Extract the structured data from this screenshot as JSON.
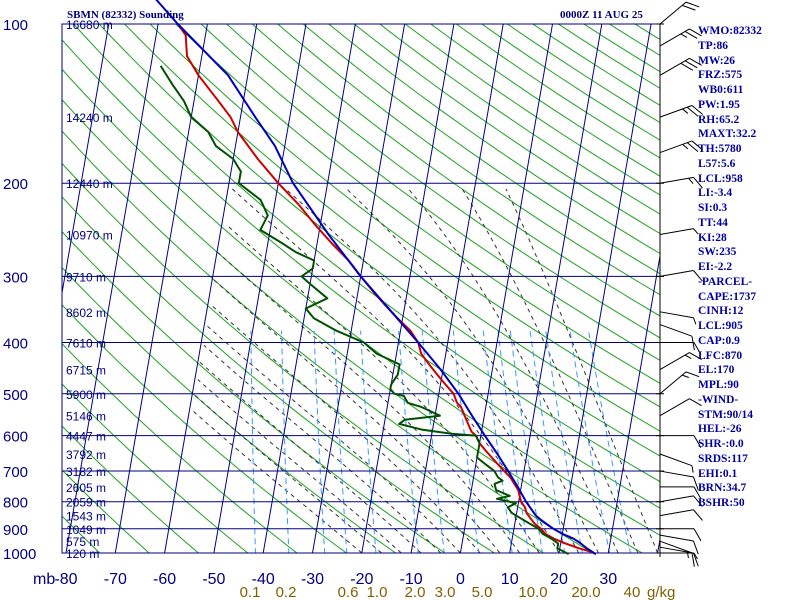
{
  "header": {
    "station": "SBMN (82332) Sounding",
    "time": "0000Z 11 AUG 25"
  },
  "stats": [
    "WMO:82332",
    "TP:86",
    "MW:26",
    "FRZ:575",
    "WB0:611",
    "PW:1.95",
    "RH:65.2",
    "MAXT:32.2",
    "TH:5780",
    "L57:5.6",
    "LCL:958",
    "LI:-3.4",
    "SI:0.3",
    "TT:44",
    "KI:28",
    "SW:235",
    "EI:-2.2",
    "-PARCEL-",
    "CAPE:1737",
    "CINH:12",
    "LCL:905",
    "CAP:0.9",
    "LFC:870",
    "EL:170",
    "MPL:90",
    "-WIND-",
    "STM:90/14",
    "HEL:-26",
    "SHR-:0.0",
    "SRDS:117",
    "EHI:0.1",
    "BRN:34.7",
    "BSHR:50"
  ],
  "colors": {
    "frame": "#000080",
    "isotherm": "#000080",
    "dry_adiabat": "#20a020",
    "moist_adiabat": "#333333",
    "mixing_ratio": "#3399ff",
    "temperature": "#cc0000",
    "dewpoint": "#005000",
    "parcel": "#0000c0",
    "axis_text": "#000080",
    "mixing_text": "#806000",
    "wind": "#000000"
  },
  "chart_data": {
    "type": "skew-t log-p sounding",
    "pressure_axis": {
      "label": "mb",
      "range": [
        1000,
        100
      ],
      "ticks": [
        1000,
        900,
        800,
        700,
        600,
        500,
        400,
        300,
        200,
        100
      ]
    },
    "temperature_axis": {
      "range": [
        -80,
        40
      ],
      "ticks": [
        -80,
        -70,
        -60,
        -50,
        -40,
        -30,
        -20,
        -10,
        0,
        10,
        20,
        30
      ]
    },
    "mixing_ratio_axis": {
      "label": "g/kg",
      "ticks": [
        "0.1",
        "0.2",
        "0.6",
        "1.0",
        "2.0",
        "3.0",
        "5.0",
        "10.0",
        "20.0",
        "40"
      ]
    },
    "height_labels": [
      {
        "p": 100,
        "text": "16680 m"
      },
      {
        "p": 150,
        "text": "14240 m"
      },
      {
        "p": 200,
        "text": "12440 m"
      },
      {
        "p": 250,
        "text": "10970 m"
      },
      {
        "p": 300,
        "text": "9710 m"
      },
      {
        "p": 350,
        "text": "8602 m"
      },
      {
        "p": 400,
        "text": "7610 m"
      },
      {
        "p": 450,
        "text": "6715 m"
      },
      {
        "p": 500,
        "text": "5900 m"
      },
      {
        "p": 550,
        "text": "5146 m"
      },
      {
        "p": 600,
        "text": "4447 m"
      },
      {
        "p": 650,
        "text": "3792 m"
      },
      {
        "p": 700,
        "text": "3182 m"
      },
      {
        "p": 750,
        "text": "2605 m"
      },
      {
        "p": 800,
        "text": "2059 m"
      },
      {
        "p": 850,
        "text": "1543 m"
      },
      {
        "p": 900,
        "text": "1049 m"
      },
      {
        "p": 950,
        "text": "575 m"
      },
      {
        "p": 1000,
        "text": "120 m"
      }
    ],
    "series": [
      {
        "name": "temperature",
        "points": [
          [
            1005,
            27.5
          ],
          [
            995,
            26.5
          ],
          [
            980,
            24
          ],
          [
            960,
            21
          ],
          [
            940,
            18.5
          ],
          [
            920,
            16.5
          ],
          [
            900,
            15.5
          ],
          [
            880,
            14
          ],
          [
            860,
            13
          ],
          [
            840,
            12
          ],
          [
            820,
            11.5
          ],
          [
            800,
            10.5
          ],
          [
            780,
            10
          ],
          [
            760,
            9.5
          ],
          [
            740,
            8.5
          ],
          [
            720,
            7.5
          ],
          [
            700,
            6
          ],
          [
            680,
            4.5
          ],
          [
            660,
            3
          ],
          [
            640,
            1.5
          ],
          [
            620,
            0
          ],
          [
            600,
            -1
          ],
          [
            590,
            -2
          ],
          [
            570,
            -3
          ],
          [
            550,
            -4
          ],
          [
            530,
            -5
          ],
          [
            520,
            -6
          ],
          [
            500,
            -7
          ],
          [
            480,
            -9
          ],
          [
            460,
            -11
          ],
          [
            440,
            -13
          ],
          [
            420,
            -15
          ],
          [
            400,
            -16
          ],
          [
            380,
            -18
          ],
          [
            360,
            -21
          ],
          [
            340,
            -24
          ],
          [
            320,
            -27
          ],
          [
            300,
            -30
          ],
          [
            280,
            -33
          ],
          [
            260,
            -37
          ],
          [
            240,
            -41
          ],
          [
            220,
            -45
          ],
          [
            200,
            -50
          ],
          [
            180,
            -55
          ],
          [
            160,
            -60
          ],
          [
            150,
            -62
          ],
          [
            140,
            -65
          ],
          [
            125,
            -70
          ],
          [
            115,
            -73
          ],
          [
            105,
            -74
          ],
          [
            100,
            -76
          ]
        ]
      },
      {
        "name": "dewpoint",
        "points": [
          [
            1005,
            22
          ],
          [
            980,
            19.5
          ],
          [
            960,
            19.5
          ],
          [
            940,
            18
          ],
          [
            920,
            16
          ],
          [
            900,
            15
          ],
          [
            880,
            13
          ],
          [
            860,
            11
          ],
          [
            840,
            9
          ],
          [
            820,
            8
          ],
          [
            805,
            9.5
          ],
          [
            790,
            5.5
          ],
          [
            780,
            8
          ],
          [
            760,
            5
          ],
          [
            740,
            4.5
          ],
          [
            730,
            6
          ],
          [
            720,
            5
          ],
          [
            700,
            4
          ],
          [
            680,
            2
          ],
          [
            660,
            0
          ],
          [
            640,
            0
          ],
          [
            620,
            0
          ],
          [
            600,
            -1
          ],
          [
            595,
            -6
          ],
          [
            585,
            -12
          ],
          [
            570,
            -17
          ],
          [
            560,
            -16
          ],
          [
            550,
            -9
          ],
          [
            540,
            -11
          ],
          [
            530,
            -13
          ],
          [
            520,
            -16
          ],
          [
            505,
            -17
          ],
          [
            500,
            -19
          ],
          [
            490,
            -20
          ],
          [
            480,
            -20
          ],
          [
            460,
            -19
          ],
          [
            440,
            -19
          ],
          [
            420,
            -24
          ],
          [
            400,
            -27
          ],
          [
            380,
            -33
          ],
          [
            360,
            -38
          ],
          [
            345,
            -40
          ],
          [
            330,
            -36
          ],
          [
            310,
            -40
          ],
          [
            300,
            -42
          ],
          [
            290,
            -40
          ],
          [
            280,
            -40
          ],
          [
            270,
            -44
          ],
          [
            260,
            -47
          ],
          [
            245,
            -52
          ],
          [
            230,
            -51
          ],
          [
            215,
            -53
          ],
          [
            200,
            -58
          ],
          [
            190,
            -58
          ],
          [
            180,
            -60
          ],
          [
            170,
            -64
          ],
          [
            160,
            -66
          ],
          [
            150,
            -70
          ],
          [
            140,
            -72
          ],
          [
            130,
            -75
          ],
          [
            120,
            -78
          ]
        ]
      },
      {
        "name": "parcel",
        "points": [
          [
            1005,
            27.5
          ],
          [
            980,
            25.5
          ],
          [
            958,
            24
          ],
          [
            940,
            22.5
          ],
          [
            920,
            20
          ],
          [
            900,
            18
          ],
          [
            870,
            15.5
          ],
          [
            850,
            14
          ],
          [
            800,
            11.5
          ],
          [
            750,
            9.3
          ],
          [
            700,
            6.8
          ],
          [
            650,
            4
          ],
          [
            600,
            0.8
          ],
          [
            550,
            -2.5
          ],
          [
            500,
            -6
          ],
          [
            450,
            -10.5
          ],
          [
            400,
            -16
          ],
          [
            350,
            -22.5
          ],
          [
            300,
            -30
          ],
          [
            250,
            -38
          ],
          [
            200,
            -47
          ],
          [
            170,
            -52
          ],
          [
            150,
            -57
          ],
          [
            125,
            -64
          ],
          [
            100,
            -76
          ],
          [
            80,
            -87
          ]
        ]
      }
    ],
    "wind_barbs": [
      {
        "p": 1000,
        "dir": 90,
        "spd": 5
      },
      {
        "p": 975,
        "dir": 100,
        "spd": 10
      },
      {
        "p": 950,
        "dir": 110,
        "spd": 15
      },
      {
        "p": 925,
        "dir": 100,
        "spd": 10
      },
      {
        "p": 900,
        "dir": 90,
        "spd": 10
      },
      {
        "p": 850,
        "dir": 80,
        "spd": 10
      },
      {
        "p": 800,
        "dir": 80,
        "spd": 10
      },
      {
        "p": 750,
        "dir": 90,
        "spd": 10
      },
      {
        "p": 700,
        "dir": 100,
        "spd": 10
      },
      {
        "p": 650,
        "dir": 110,
        "spd": 5
      },
      {
        "p": 600,
        "dir": 90,
        "spd": 10
      },
      {
        "p": 550,
        "dir": 60,
        "spd": 10
      },
      {
        "p": 500,
        "dir": 50,
        "spd": 15
      },
      {
        "p": 450,
        "dir": 60,
        "spd": 15
      },
      {
        "p": 400,
        "dir": 90,
        "spd": 10
      },
      {
        "p": 370,
        "dir": 110,
        "spd": 10
      },
      {
        "p": 350,
        "dir": 100,
        "spd": 5
      },
      {
        "p": 300,
        "dir": 80,
        "spd": 10
      },
      {
        "p": 250,
        "dir": 80,
        "spd": 5
      },
      {
        "p": 200,
        "dir": 80,
        "spd": 15
      },
      {
        "p": 175,
        "dir": 70,
        "spd": 25
      },
      {
        "p": 150,
        "dir": 70,
        "spd": 25
      },
      {
        "p": 125,
        "dir": 60,
        "spd": 30
      },
      {
        "p": 110,
        "dir": 60,
        "spd": 25
      },
      {
        "p": 100,
        "dir": 50,
        "spd": 20
      }
    ]
  }
}
